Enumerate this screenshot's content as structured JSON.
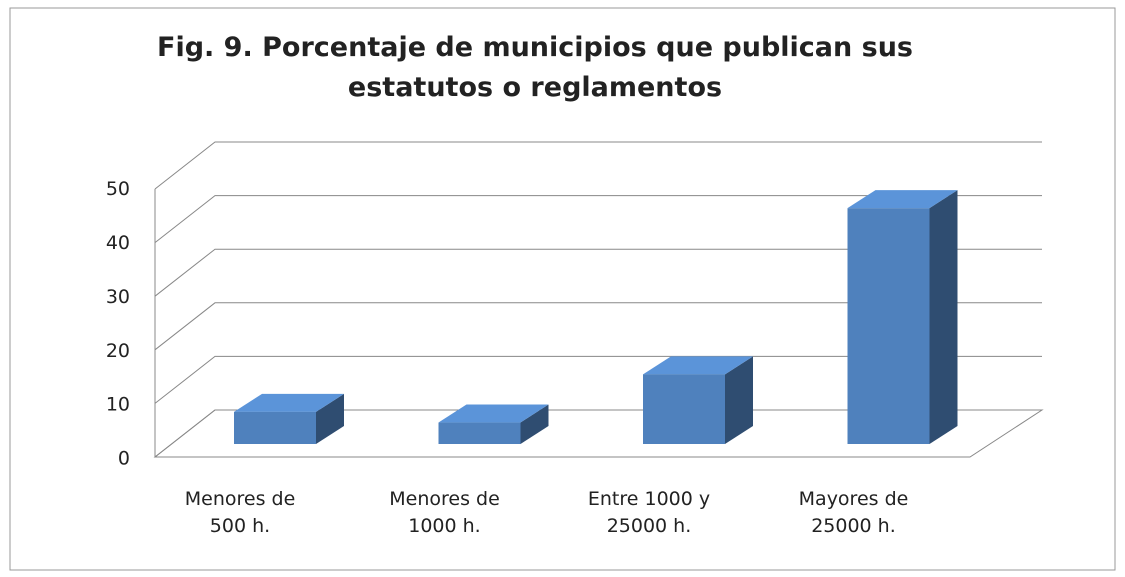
{
  "chart_data": {
    "type": "bar3d",
    "title": "Fig. 9. Porcentaje de municipios que publican sus\nestatutos o reglamentos",
    "categories": [
      "Menores de\n500 h.",
      "Menores de\n1000 h.",
      "Entre 1000 y\n25000 h.",
      "Mayores de\n25000 h."
    ],
    "values": [
      6,
      4,
      13,
      44
    ],
    "color": "#4f81bd",
    "ylim": [
      0,
      50
    ],
    "yticks": [
      0,
      10,
      20,
      30,
      40,
      50
    ],
    "grid": true
  }
}
